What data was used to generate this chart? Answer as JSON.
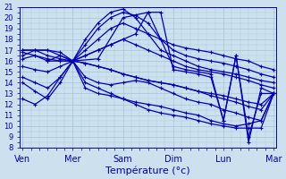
{
  "xlabel": "Température (°c)",
  "background_color": "#cce0ee",
  "grid_color": "#aac8dc",
  "line_color": "#0000bb",
  "ylim": [
    8,
    21
  ],
  "yticks": [
    8,
    9,
    10,
    11,
    12,
    13,
    14,
    15,
    16,
    17,
    18,
    19,
    20,
    21
  ],
  "day_labels": [
    "Ven",
    "Mer",
    "Sam",
    "Dim",
    "Lun",
    "Mar"
  ],
  "figsize": [
    3.2,
    2.0
  ],
  "dpi": 100,
  "ensemble_lines": [
    {
      "x": [
        0.0,
        0.25,
        0.5,
        0.75,
        1.0,
        1.25,
        1.5,
        1.75,
        2.0,
        2.25,
        2.5,
        2.75,
        3.0,
        3.25,
        3.5,
        3.75,
        4.0,
        4.25,
        4.5,
        4.75,
        5.0
      ],
      "y": [
        16.5,
        17.0,
        17.0,
        16.5,
        16.0,
        17.5,
        19.0,
        20.0,
        20.5,
        20.2,
        19.5,
        18.0,
        17.0,
        16.5,
        16.2,
        16.0,
        15.8,
        15.5,
        15.2,
        14.8,
        14.5
      ]
    },
    {
      "x": [
        0.0,
        0.25,
        0.5,
        0.75,
        1.0,
        1.25,
        1.5,
        1.75,
        2.0,
        2.25,
        2.5,
        2.75,
        3.0,
        3.25,
        3.5,
        3.75,
        4.0,
        4.25,
        4.5,
        4.75,
        5.0
      ],
      "y": [
        17.0,
        17.0,
        17.0,
        16.8,
        16.0,
        18.0,
        19.5,
        20.5,
        20.8,
        20.0,
        18.5,
        17.0,
        16.5,
        16.0,
        15.5,
        15.2,
        15.0,
        14.8,
        14.5,
        14.2,
        14.0
      ]
    },
    {
      "x": [
        0.0,
        0.25,
        0.5,
        0.75,
        1.0,
        1.25,
        1.5,
        1.75,
        2.0,
        2.25,
        2.5,
        2.75,
        3.0,
        3.25,
        3.5,
        3.75,
        4.0,
        4.25,
        4.5,
        4.75,
        5.0
      ],
      "y": [
        17.0,
        17.0,
        16.5,
        16.2,
        16.0,
        17.0,
        18.0,
        19.0,
        19.5,
        19.0,
        18.5,
        18.0,
        17.5,
        17.2,
        17.0,
        16.8,
        16.5,
        16.2,
        16.0,
        15.5,
        15.2
      ]
    },
    {
      "x": [
        0.0,
        0.25,
        0.5,
        0.75,
        1.0,
        1.25,
        1.5,
        1.75,
        2.0,
        2.25,
        2.5,
        2.75,
        3.0,
        3.25,
        3.5,
        3.75,
        4.0,
        4.25,
        4.5,
        4.75,
        5.0
      ],
      "y": [
        16.8,
        16.5,
        16.0,
        16.0,
        16.0,
        16.5,
        17.0,
        17.5,
        18.0,
        17.5,
        17.0,
        16.5,
        16.0,
        15.5,
        15.2,
        15.0,
        14.8,
        14.5,
        14.2,
        13.8,
        13.5
      ]
    },
    {
      "x": [
        0.0,
        0.25,
        0.5,
        0.75,
        1.0,
        1.25,
        1.5,
        1.75,
        2.0,
        2.25,
        2.5,
        2.75,
        3.0,
        3.25,
        3.5,
        3.75,
        4.0,
        4.25,
        4.5,
        4.75,
        5.0
      ],
      "y": [
        16.2,
        16.5,
        16.2,
        16.0,
        16.0,
        15.8,
        15.5,
        15.2,
        14.8,
        14.5,
        14.2,
        14.0,
        13.8,
        13.5,
        13.2,
        13.0,
        12.8,
        12.5,
        12.2,
        12.0,
        13.0
      ]
    },
    {
      "x": [
        0.0,
        0.25,
        0.5,
        0.75,
        1.0,
        1.25,
        1.5,
        1.75,
        2.0,
        2.25,
        2.5,
        2.75,
        3.0,
        3.25,
        3.5,
        3.75,
        4.0,
        4.25,
        4.5,
        4.75,
        5.0
      ],
      "y": [
        15.5,
        15.2,
        15.0,
        15.5,
        16.0,
        15.8,
        15.5,
        15.2,
        14.8,
        14.5,
        14.2,
        14.0,
        13.8,
        13.5,
        13.2,
        12.8,
        12.5,
        12.2,
        11.8,
        11.5,
        13.0
      ]
    },
    {
      "x": [
        0.0,
        0.25,
        0.5,
        0.75,
        1.0,
        1.25,
        1.5,
        1.75,
        2.0,
        2.25,
        2.5,
        2.75,
        3.0,
        3.25,
        3.5,
        3.75,
        4.0,
        4.25,
        4.5,
        4.75,
        5.0
      ],
      "y": [
        14.5,
        14.0,
        13.5,
        14.5,
        16.0,
        14.5,
        14.0,
        13.8,
        14.0,
        14.2,
        14.0,
        13.5,
        13.0,
        12.5,
        12.2,
        12.0,
        11.5,
        11.2,
        10.8,
        10.5,
        13.0
      ]
    },
    {
      "x": [
        0.0,
        0.25,
        0.5,
        0.75,
        1.0,
        1.25,
        1.5,
        1.75,
        2.0,
        2.25,
        2.5,
        2.75,
        3.0,
        3.25,
        3.5,
        3.75,
        4.0,
        4.25,
        4.5,
        4.75,
        5.0
      ],
      "y": [
        14.0,
        13.2,
        12.5,
        14.0,
        16.0,
        13.5,
        13.0,
        12.8,
        12.5,
        12.2,
        12.0,
        11.8,
        11.5,
        11.2,
        11.0,
        10.5,
        10.2,
        10.0,
        10.2,
        10.5,
        13.0
      ]
    },
    {
      "x": [
        0.0,
        0.25,
        0.5,
        0.75,
        1.0,
        1.25,
        1.5,
        1.75,
        2.0,
        2.25,
        2.5,
        2.75,
        3.0,
        3.25,
        3.5,
        3.75,
        4.0,
        4.25,
        4.5,
        4.75,
        5.0
      ],
      "y": [
        12.5,
        12.0,
        12.8,
        14.5,
        16.0,
        14.0,
        13.5,
        13.0,
        12.5,
        12.0,
        11.5,
        11.2,
        11.0,
        10.8,
        10.5,
        10.2,
        10.0,
        9.8,
        9.8,
        9.8,
        13.0
      ]
    },
    {
      "x": [
        0.5,
        0.75,
        1.0,
        1.5,
        2.0,
        2.5,
        3.0,
        3.25,
        3.5,
        3.75,
        4.0,
        4.25,
        4.5,
        4.75,
        5.0
      ],
      "y": [
        16.0,
        16.5,
        16.0,
        16.2,
        20.0,
        20.5,
        15.5,
        15.2,
        15.0,
        14.8,
        10.5,
        16.5,
        9.0,
        13.0,
        13.0
      ]
    },
    {
      "x": [
        1.0,
        1.25,
        1.5,
        1.75,
        2.0,
        2.25,
        2.5,
        2.75,
        3.0,
        3.25,
        3.5,
        3.75,
        4.0,
        4.25,
        4.5,
        4.75,
        5.0
      ],
      "y": [
        16.0,
        16.5,
        17.0,
        17.5,
        18.0,
        18.5,
        20.5,
        20.5,
        15.2,
        15.0,
        14.8,
        14.5,
        10.5,
        16.5,
        8.5,
        13.5,
        13.0
      ]
    }
  ]
}
